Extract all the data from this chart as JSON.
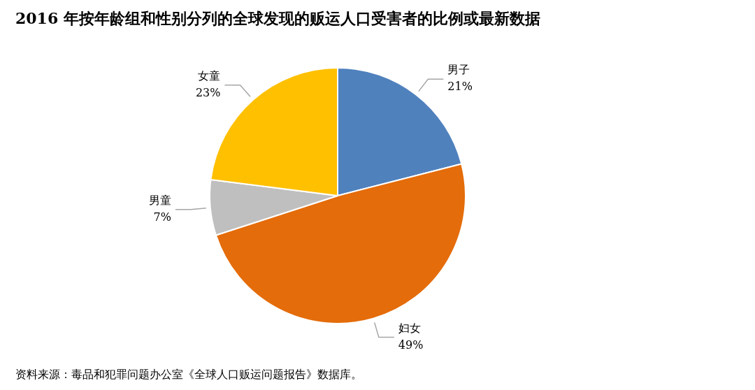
{
  "chart_data": {
    "type": "pie",
    "title": "2016 年按年龄组和性别分列的全球发现的贩运人口受害者的比例或最新数据",
    "categories": [
      "男子",
      "妇女",
      "男童",
      "女童"
    ],
    "values": [
      21,
      49,
      7,
      23
    ],
    "colors": [
      "#4f81bd",
      "#e46c0a",
      "#bfbfbf",
      "#ffc000"
    ],
    "value_labels": [
      "21%",
      "49%",
      "7%",
      "23%"
    ],
    "legend": false,
    "annotations": [
      "资料来源：毒品和犯罪问题办公室《全球人口贩运问题报告》数据库。"
    ]
  }
}
